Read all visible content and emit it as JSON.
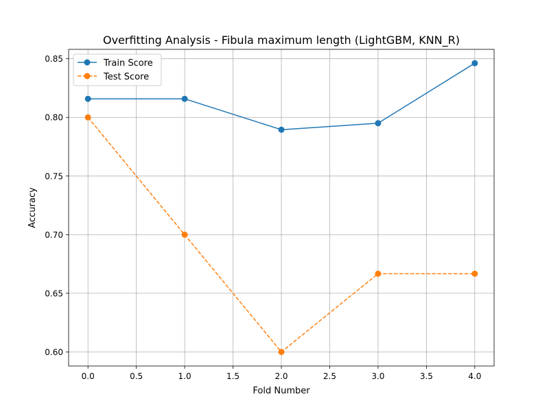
{
  "chart_data": {
    "type": "line",
    "title": "Overfitting Analysis - Fibula maximum length (LightGBM, KNN_R)",
    "xlabel": "Fold Number",
    "ylabel": "Accuracy",
    "xlim": [
      -0.2,
      4.2
    ],
    "ylim": [
      0.588,
      0.858
    ],
    "xticks": [
      0.0,
      0.5,
      1.0,
      1.5,
      2.0,
      2.5,
      3.0,
      3.5,
      4.0
    ],
    "xtick_labels": [
      "0.0",
      "0.5",
      "1.0",
      "1.5",
      "2.0",
      "2.5",
      "3.0",
      "3.5",
      "4.0"
    ],
    "yticks": [
      0.6,
      0.65,
      0.7,
      0.75,
      0.8,
      0.85
    ],
    "ytick_labels": [
      "0.60",
      "0.65",
      "0.70",
      "0.75",
      "0.80",
      "0.85"
    ],
    "grid": true,
    "legend_position": "top-left",
    "x": [
      0,
      1,
      2,
      3,
      4
    ],
    "series": [
      {
        "name": "Train Score",
        "values": [
          0.8158,
          0.8158,
          0.7895,
          0.795,
          0.8462
        ],
        "color": "#1f77b4",
        "line_style": "solid",
        "marker": "circle"
      },
      {
        "name": "Test Score",
        "values": [
          0.8,
          0.7,
          0.6,
          0.6667,
          0.6667
        ],
        "color": "#ff7f0e",
        "line_style": "dashed",
        "marker": "circle"
      }
    ]
  }
}
